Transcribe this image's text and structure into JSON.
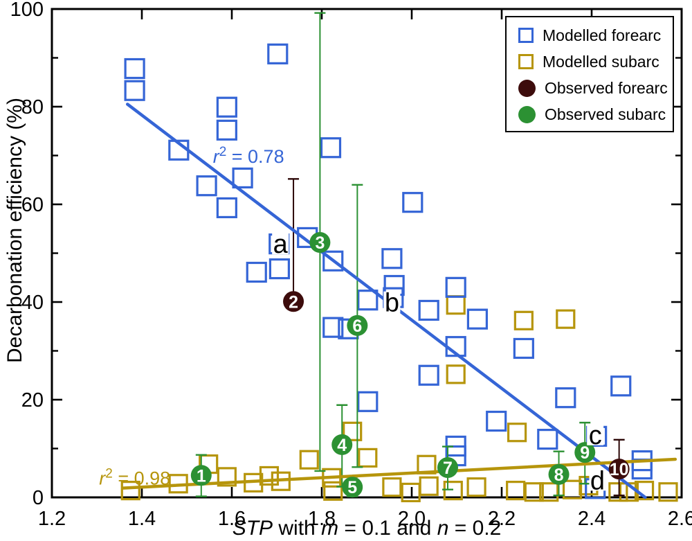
{
  "figure": {
    "y_axis_title": "Decarbonation efficiency (%)",
    "x_axis_title_segments": [
      {
        "text": "STP",
        "italic": true
      },
      {
        "text": " with ",
        "italic": false
      },
      {
        "text": "m",
        "italic": true
      },
      {
        "text": " = 0.1 and ",
        "italic": false
      },
      {
        "text": "n",
        "italic": true
      },
      {
        "text": " = 0.2",
        "italic": false
      }
    ]
  },
  "legend": {
    "items": [
      {
        "label": "Modelled forearc",
        "marker": "square",
        "color": "#3565D6"
      },
      {
        "label": "Modelled subarc",
        "marker": "square",
        "color": "#B6950C"
      },
      {
        "label": "Observed forearc",
        "marker": "circle",
        "color": "#3D0C0C"
      },
      {
        "label": "Observed subarc",
        "marker": "circle",
        "color": "#2C9133"
      }
    ]
  },
  "chart_data": {
    "type": "scatter",
    "title": "",
    "xlabel": "STP with m = 0.1 and n = 0.2",
    "ylabel": "Decarbonation efficiency (%)",
    "xlim": [
      1.2,
      2.6
    ],
    "ylim": [
      0,
      100
    ],
    "grid": false,
    "legend_position": "top-right",
    "x_ticks": {
      "major": [
        1.2,
        1.4,
        1.6,
        1.8,
        2.0,
        2.2,
        2.4,
        2.6
      ],
      "labels": [
        "1.2",
        "1.4",
        "1.6",
        "1.8",
        "2.0",
        "2.2",
        "2.4",
        "2.6"
      ]
    },
    "y_ticks": {
      "major": [
        0,
        20,
        40,
        60,
        80,
        100
      ],
      "labels": [
        "0",
        "20",
        "40",
        "60",
        "80",
        "100"
      ],
      "minor": [
        10,
        30,
        50,
        70,
        90
      ]
    },
    "series": [
      {
        "name": "Modelled forearc",
        "marker": "open-square",
        "color": "#3565D6",
        "size": 27,
        "points": [
          [
            1.384,
            87.8
          ],
          [
            1.384,
            83.3
          ],
          [
            1.702,
            90.8
          ],
          [
            1.589,
            79.9
          ],
          [
            1.589,
            75.2
          ],
          [
            1.482,
            71.1
          ],
          [
            1.624,
            65.4
          ],
          [
            1.544,
            63.8
          ],
          [
            1.589,
            59.3
          ],
          [
            1.82,
            71.6
          ],
          [
            2.002,
            60.4
          ],
          [
            1.705,
            51.9
          ],
          [
            1.768,
            53.2
          ],
          [
            1.825,
            48.4
          ],
          [
            1.655,
            46.1
          ],
          [
            1.706,
            46.8
          ],
          [
            1.956,
            48.9
          ],
          [
            1.961,
            43.4
          ],
          [
            1.959,
            40.9
          ],
          [
            1.902,
            40.4
          ],
          [
            2.038,
            38.3
          ],
          [
            2.098,
            43.0
          ],
          [
            2.146,
            36.5
          ],
          [
            2.098,
            30.9
          ],
          [
            2.038,
            25.0
          ],
          [
            2.249,
            30.5
          ],
          [
            1.825,
            34.8
          ],
          [
            1.859,
            34.5
          ],
          [
            2.465,
            22.8
          ],
          [
            2.342,
            20.4
          ],
          [
            2.188,
            15.6
          ],
          [
            1.902,
            19.6
          ],
          [
            2.098,
            10.5
          ],
          [
            2.098,
            8.5
          ],
          [
            2.302,
            11.9
          ],
          [
            2.411,
            12.5
          ],
          [
            2.512,
            7.5
          ],
          [
            2.512,
            5.8
          ],
          [
            2.408,
            1.8
          ]
        ]
      },
      {
        "name": "Modelled subarc",
        "marker": "open-square",
        "color": "#B6950C",
        "size": 25,
        "points": [
          [
            2.098,
            39.4
          ],
          [
            2.249,
            36.2
          ],
          [
            2.342,
            36.5
          ],
          [
            2.098,
            25.2
          ],
          [
            2.234,
            13.3
          ],
          [
            1.868,
            13.5
          ],
          [
            1.375,
            1.4
          ],
          [
            1.481,
            2.8
          ],
          [
            1.548,
            6.8
          ],
          [
            1.589,
            4.2
          ],
          [
            1.648,
            3.0
          ],
          [
            1.683,
            4.4
          ],
          [
            1.709,
            3.3
          ],
          [
            1.772,
            7.7
          ],
          [
            1.822,
            4.0
          ],
          [
            1.825,
            1.3
          ],
          [
            1.902,
            8.1
          ],
          [
            1.956,
            2.1
          ],
          [
            1.998,
            1.0
          ],
          [
            2.033,
            6.7
          ],
          [
            2.038,
            2.3
          ],
          [
            2.092,
            1.4
          ],
          [
            2.144,
            2.1
          ],
          [
            2.231,
            1.4
          ],
          [
            2.272,
            1.1
          ],
          [
            2.305,
            1.1
          ],
          [
            2.357,
            1.6
          ],
          [
            2.393,
            2.4
          ],
          [
            2.459,
            1.1
          ],
          [
            2.483,
            1.1
          ],
          [
            2.517,
            1.4
          ],
          [
            2.57,
            1.1
          ]
        ]
      },
      {
        "name": "Observed forearc",
        "marker": "filled-circle",
        "color": "#3D0C0C",
        "error_color": "#2B0606",
        "points": [
          {
            "label": "2",
            "x": 1.737,
            "y": 40.1,
            "err_lo": null,
            "err_hi": 65.2
          },
          {
            "label": "10",
            "x": 2.461,
            "y": 5.8,
            "err_lo": 0.4,
            "err_hi": 11.8
          }
        ]
      },
      {
        "name": "Observed subarc",
        "marker": "filled-circle",
        "color": "#2C9133",
        "error_color": "#2C9133",
        "points": [
          {
            "label": "1",
            "x": 1.532,
            "y": 4.5,
            "err_lo": 0.2,
            "err_hi": 8.7
          },
          {
            "label": "3",
            "x": 1.796,
            "y": 52.2,
            "err_lo": 5.4,
            "err_hi": 99.2
          },
          {
            "label": "4",
            "x": 1.845,
            "y": 10.8,
            "err_lo": 2.2,
            "err_hi": 18.9
          },
          {
            "label": "5",
            "x": 1.868,
            "y": 2.1,
            "err_lo": 0.2,
            "err_hi": 4.2
          },
          {
            "label": "6",
            "x": 1.879,
            "y": 35.2,
            "err_lo": 6.2,
            "err_hi": 64.0
          },
          {
            "label": "7",
            "x": 2.08,
            "y": 6.1,
            "err_lo": 1.6,
            "err_hi": 10.4
          },
          {
            "label": "8",
            "x": 2.327,
            "y": 4.7,
            "err_lo": 0.4,
            "err_hi": 9.4
          },
          {
            "label": "9",
            "x": 2.385,
            "y": 9.2,
            "err_lo": 2.8,
            "err_hi": 15.3
          }
        ]
      }
    ],
    "fit_lines": [
      {
        "name": "forearc-fit",
        "color": "#3565D6",
        "x1": 1.368,
        "y1": 80.5,
        "x2": 2.519,
        "y2": 0,
        "r2": "0.78",
        "label_anchor": [
          1.558,
          68.5
        ]
      },
      {
        "name": "subarc-fit",
        "color": "#B6950C",
        "x1": 1.358,
        "y1": 1.9,
        "x2": 2.586,
        "y2": 7.8,
        "r2": "0.98",
        "label_anchor": [
          1.305,
          2.6
        ]
      }
    ],
    "annotations": [
      {
        "text": "a",
        "x": 1.708,
        "y": 51.9
      },
      {
        "text": "b",
        "x": 1.956,
        "y": 39.9
      },
      {
        "text": "c",
        "x": 2.408,
        "y": 12.8
      },
      {
        "text": "d",
        "x": 2.413,
        "y": 3.5
      }
    ]
  }
}
